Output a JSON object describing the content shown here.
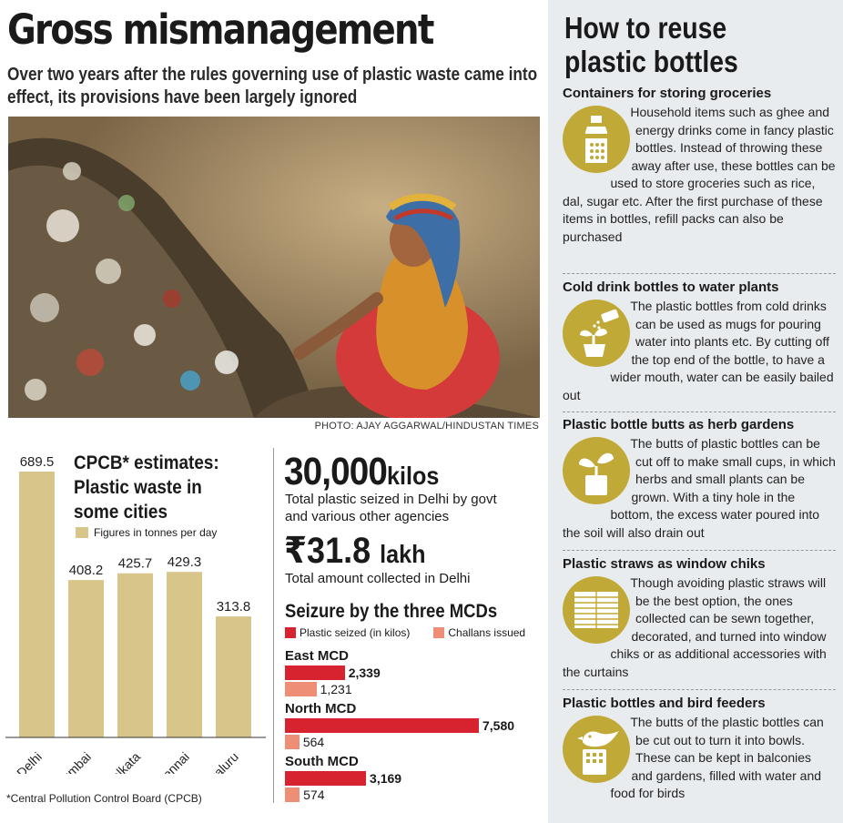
{
  "headline": "Gross mismanagement",
  "deck": "Over two years after the rules governing use of plastic waste came into effect, its provisions have been largely ignored",
  "photo_credit": "PHOTO: AJAY AGGARWAL/HINDUSTAN TIMES",
  "chart_data": [
    {
      "type": "bar",
      "title": "CPCB* estimates: Plastic waste in some cities",
      "legend": "Figures in tonnes per day",
      "categories": [
        "Delhi",
        "Mumbai",
        "Kolkata",
        "Chennai",
        "Bengaluru"
      ],
      "values": [
        689.5,
        408.2,
        425.7,
        429.3,
        313.8
      ],
      "ylim": [
        0,
        700
      ],
      "color": "#d8c58a",
      "footnote": "*Central Pollution Control Board (CPCB)"
    },
    {
      "type": "bar",
      "orientation": "horizontal",
      "title": "Seizure by the three MCDs",
      "categories": [
        "East MCD",
        "North MCD",
        "South MCD"
      ],
      "series": [
        {
          "name": "Plastic seized (in kilos)",
          "values": [
            2339,
            7580,
            3169
          ],
          "color": "#d7232f"
        },
        {
          "name": "Challans issued",
          "values": [
            1231,
            564,
            574
          ],
          "color": "#ef8e76"
        }
      ],
      "xlim": [
        0,
        7580
      ]
    }
  ],
  "stats": {
    "seized_value": "30,000",
    "seized_unit": "kilos",
    "seized_caption": "Total plastic seized in Delhi by govt and various other agencies",
    "amount_value": "₹31.8",
    "amount_unit": "lakh",
    "amount_caption": "Total amount collected in Delhi"
  },
  "panel": {
    "title_line1": "How to reuse",
    "title_line2": "plastic bottles",
    "accent": "#c0a936",
    "tips": [
      {
        "heading": "Containers for storing groceries",
        "icon": "bottle-icon",
        "body": "Household items such as ghee and energy drinks come in fancy plastic bottles. Instead of throwing these away after use, these bottles can be used to store groceries such as rice, dal, sugar etc. After the first purchase of these items in bottles, refill packs can also be purchased"
      },
      {
        "heading": "Cold drink bottles to water plants",
        "icon": "watering-plant-icon",
        "body": "The plastic bottles from cold drinks can be used as mugs for pouring water into plants etc. By cutting off the top end of the bottle, to have a wider mouth, water can be easily bailed out"
      },
      {
        "heading": "Plastic bottle butts as herb gardens",
        "icon": "sprout-cup-icon",
        "body": "The butts of plastic bottles can be cut off to make small cups, in which herbs and small plants can be grown. With a tiny hole in the bottom, the excess water poured into the soil will also drain out"
      },
      {
        "heading": "Plastic straws as window chiks",
        "icon": "window-blind-icon",
        "body": "Though avoiding plastic straws will be the best option, the ones collected can be sewn together, decorated, and turned into window chiks or as additional accessories with the curtains"
      },
      {
        "heading": "Plastic bottles and bird feeders",
        "icon": "bird-feeder-icon",
        "body": "The butts of the plastic bottles can be cut out to turn it into bowls. These can be kept in balconies and gardens, filled with water and food for birds"
      }
    ]
  }
}
